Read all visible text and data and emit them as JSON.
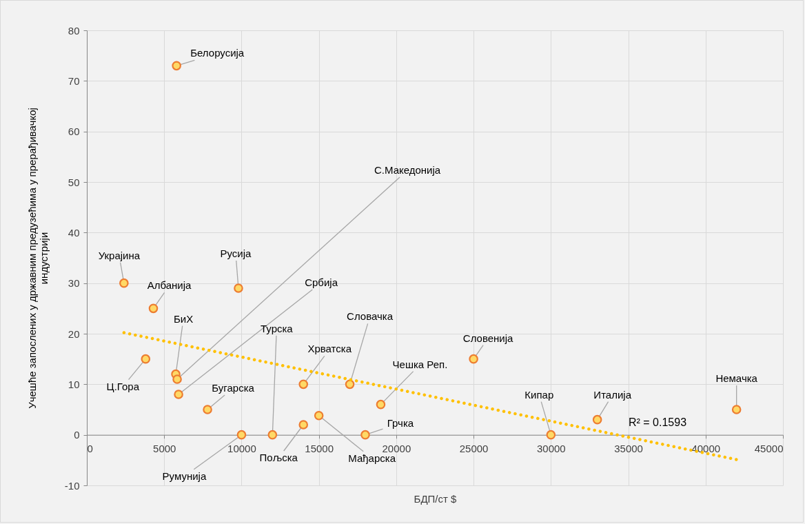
{
  "chart_data": {
    "type": "scatter",
    "xlabel": "БДП/ст $",
    "ylabel": "Учешће запослених у државним предузећима у прерађивачкој индустрији",
    "xlim": [
      0,
      45000
    ],
    "xticks": [
      0,
      5000,
      10000,
      15000,
      20000,
      25000,
      30000,
      35000,
      40000,
      45000
    ],
    "ylim": [
      -10,
      80
    ],
    "yticks": [
      -10,
      0,
      10,
      20,
      30,
      40,
      50,
      60,
      70,
      80
    ],
    "grid": true,
    "series": [
      {
        "marker": "circle",
        "color": "#ed7d31",
        "x": [
          5800,
          2400,
          4300,
          9800,
          5750,
          5840,
          5930,
          3800,
          7800,
          10000,
          12000,
          14000,
          15000,
          14000,
          17000,
          18000,
          19000,
          25000,
          30000,
          33000,
          42000
        ],
        "values": [
          73,
          30,
          25,
          29,
          12,
          11,
          8,
          15,
          5,
          0,
          0,
          2,
          3.8,
          10,
          10,
          0,
          6,
          15,
          0,
          3,
          5
        ],
        "value_labels": [
          "Белорусија",
          "Украјина",
          "Албанија",
          "Русија",
          "БиХ",
          "С.Македонија",
          "Србија",
          "Ц.Гора",
          "Бугарска",
          "Румунија",
          "Турска",
          "Пољска",
          "Мађарска",
          "Хрватска",
          "Словачка",
          "Грчка",
          "Чешка Реп.",
          "Словенија",
          "Кипар",
          "Италија",
          "Немачка"
        ]
      },
      {
        "type": "line",
        "color": "#ffc000",
        "line_style": "dotted",
        "x": [
          2400,
          42000
        ],
        "values": [
          20.2,
          -4.9
        ]
      }
    ],
    "annotations": [
      "R² = 0.1593"
    ]
  }
}
